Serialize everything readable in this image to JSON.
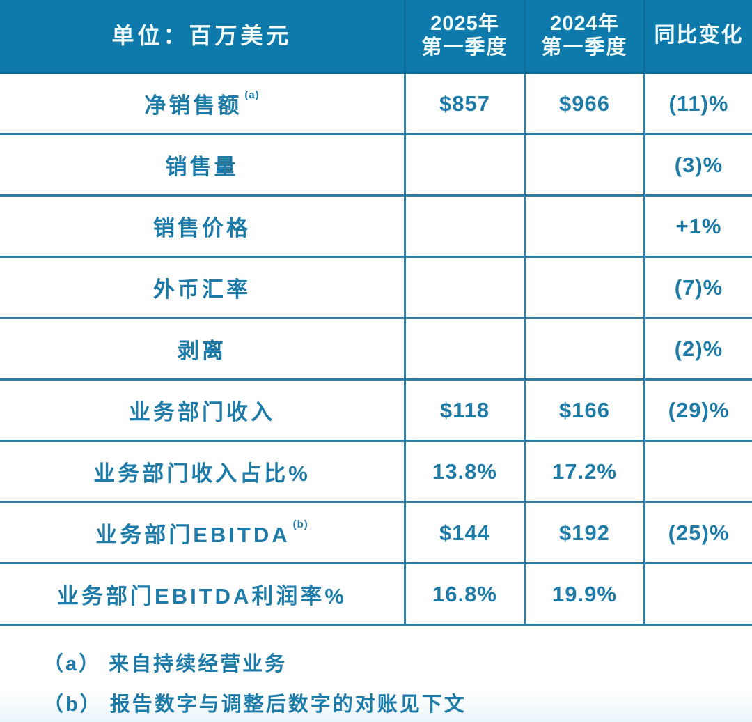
{
  "colors": {
    "header_bg": "#0E79AB",
    "header_divider": "#0B6C97",
    "header_text": "#F2FDFB",
    "body_text": "#1E7BA7",
    "border": "#2E7EA6"
  },
  "header": {
    "unit": "单位：百万美元",
    "col2025_line1": "2025年",
    "col2025_line2": "第一季度",
    "col2024_line1": "2024年",
    "col2024_line2": "第一季度",
    "yoy": "同比变化"
  },
  "table": {
    "rows": [
      {
        "label": "净销售额",
        "sup": "(a)",
        "v2025": "$857",
        "v2024": "$966",
        "yoy": "(11)%"
      },
      {
        "label": "销售量",
        "sup": "",
        "v2025": "",
        "v2024": "",
        "yoy": "(3)%"
      },
      {
        "label": "销售价格",
        "sup": "",
        "v2025": "",
        "v2024": "",
        "yoy": "+1%"
      },
      {
        "label": "外币汇率",
        "sup": "",
        "v2025": "",
        "v2024": "",
        "yoy": "(7)%"
      },
      {
        "label": "剥离",
        "sup": "",
        "v2025": "",
        "v2024": "",
        "yoy": "(2)%"
      },
      {
        "label": "业务部门收入",
        "sup": "",
        "v2025": "$118",
        "v2024": "$166",
        "yoy": "(29)%"
      },
      {
        "label": "业务部门收入占比%",
        "sup": "",
        "v2025": "13.8%",
        "v2024": "17.2%",
        "yoy": ""
      },
      {
        "label": "业务部门EBITDA",
        "sup": "(b)",
        "v2025": "$144",
        "v2024": "$192",
        "yoy": "(25)%"
      },
      {
        "label": "业务部门EBITDA利润率%",
        "sup": "",
        "v2025": "16.8%",
        "v2024": "19.9%",
        "yoy": ""
      }
    ]
  },
  "footnotes": {
    "a": "（a） 来自持续经营业务",
    "b": "（b） 报告数字与调整后数字的对账见下文"
  },
  "chart_data": {
    "type": "table",
    "title": "单位：百万美元",
    "columns": [
      "单位：百万美元",
      "2025年 第一季度",
      "2024年 第一季度",
      "同比变化"
    ],
    "rows": [
      [
        "净销售额(a)",
        "$857",
        "$966",
        "(11)%"
      ],
      [
        "销售量",
        "",
        "",
        "(3)%"
      ],
      [
        "销售价格",
        "",
        "",
        "+1%"
      ],
      [
        "外币汇率",
        "",
        "",
        "(7)%"
      ],
      [
        "剥离",
        "",
        "",
        "(2)%"
      ],
      [
        "业务部门收入",
        "$118",
        "$166",
        "(29)%"
      ],
      [
        "业务部门收入占比%",
        "13.8%",
        "17.2%",
        ""
      ],
      [
        "业务部门EBITDA(b)",
        "$144",
        "$192",
        "(25)%"
      ],
      [
        "业务部门EBITDA利润率%",
        "16.8%",
        "19.9%",
        ""
      ]
    ],
    "footnotes": [
      "（a） 来自持续经营业务",
      "（b） 报告数字与调整后数字的对账见下文"
    ]
  }
}
